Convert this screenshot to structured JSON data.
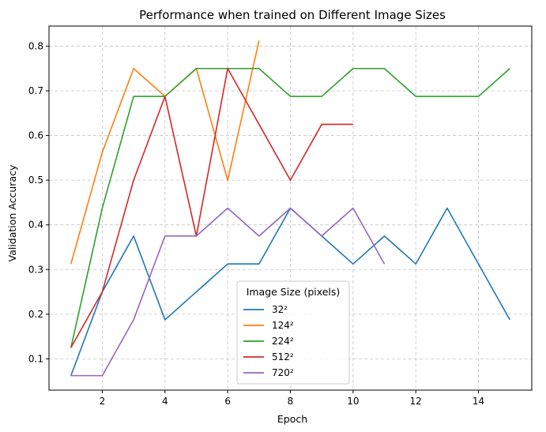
{
  "chart_data": {
    "type": "line",
    "title": "Performance when trained on Different Image Sizes",
    "xlabel": "Epoch",
    "ylabel": "Validation Accuracy",
    "xlim": [
      0.3,
      15.7
    ],
    "ylim": [
      0.03,
      0.845
    ],
    "xticks": [
      2,
      4,
      6,
      8,
      10,
      12,
      14
    ],
    "yticks": [
      0.1,
      0.2,
      0.3,
      0.4,
      0.5,
      0.6,
      0.7,
      0.8
    ],
    "grid": true,
    "legend": {
      "title": "Image Size (pixels)",
      "placement": "bottom-center"
    },
    "series": [
      {
        "name": "32²",
        "color": "#1f77b4",
        "x": [
          1,
          2,
          3,
          4,
          5,
          6,
          7,
          8,
          9,
          10,
          11,
          12,
          13,
          14,
          15
        ],
        "y": [
          0.0625,
          0.25,
          0.375,
          0.1875,
          0.25,
          0.3125,
          0.3125,
          0.4375,
          0.375,
          0.3125,
          0.375,
          0.3125,
          0.4375,
          0.3125,
          0.1875
        ]
      },
      {
        "name": "124²",
        "color": "#ff7f0e",
        "x": [
          1,
          2,
          3,
          4,
          5,
          6,
          7
        ],
        "y": [
          0.3125,
          0.5625,
          0.75,
          0.6875,
          0.75,
          0.5,
          0.8125
        ]
      },
      {
        "name": "224²",
        "color": "#2ca02c",
        "x": [
          1,
          2,
          3,
          4,
          5,
          6,
          7,
          8,
          9,
          10,
          11,
          12,
          13,
          14,
          15
        ],
        "y": [
          0.125,
          0.4375,
          0.6875,
          0.6875,
          0.75,
          0.75,
          0.75,
          0.6875,
          0.6875,
          0.75,
          0.75,
          0.6875,
          0.6875,
          0.6875,
          0.75
        ]
      },
      {
        "name": "512²",
        "color": "#d62728",
        "x": [
          1,
          2,
          3,
          4,
          5,
          6,
          7,
          8,
          9,
          10
        ],
        "y": [
          0.125,
          0.25,
          0.5,
          0.6875,
          0.375,
          0.75,
          0.625,
          0.5,
          0.625,
          0.625
        ]
      },
      {
        "name": "720²",
        "color": "#9467bd",
        "x": [
          1,
          2,
          3,
          4,
          5,
          6,
          7,
          8,
          9,
          10,
          11
        ],
        "y": [
          0.0625,
          0.0625,
          0.1875,
          0.375,
          0.375,
          0.4375,
          0.375,
          0.4375,
          0.375,
          0.4375,
          0.3125
        ]
      }
    ]
  }
}
